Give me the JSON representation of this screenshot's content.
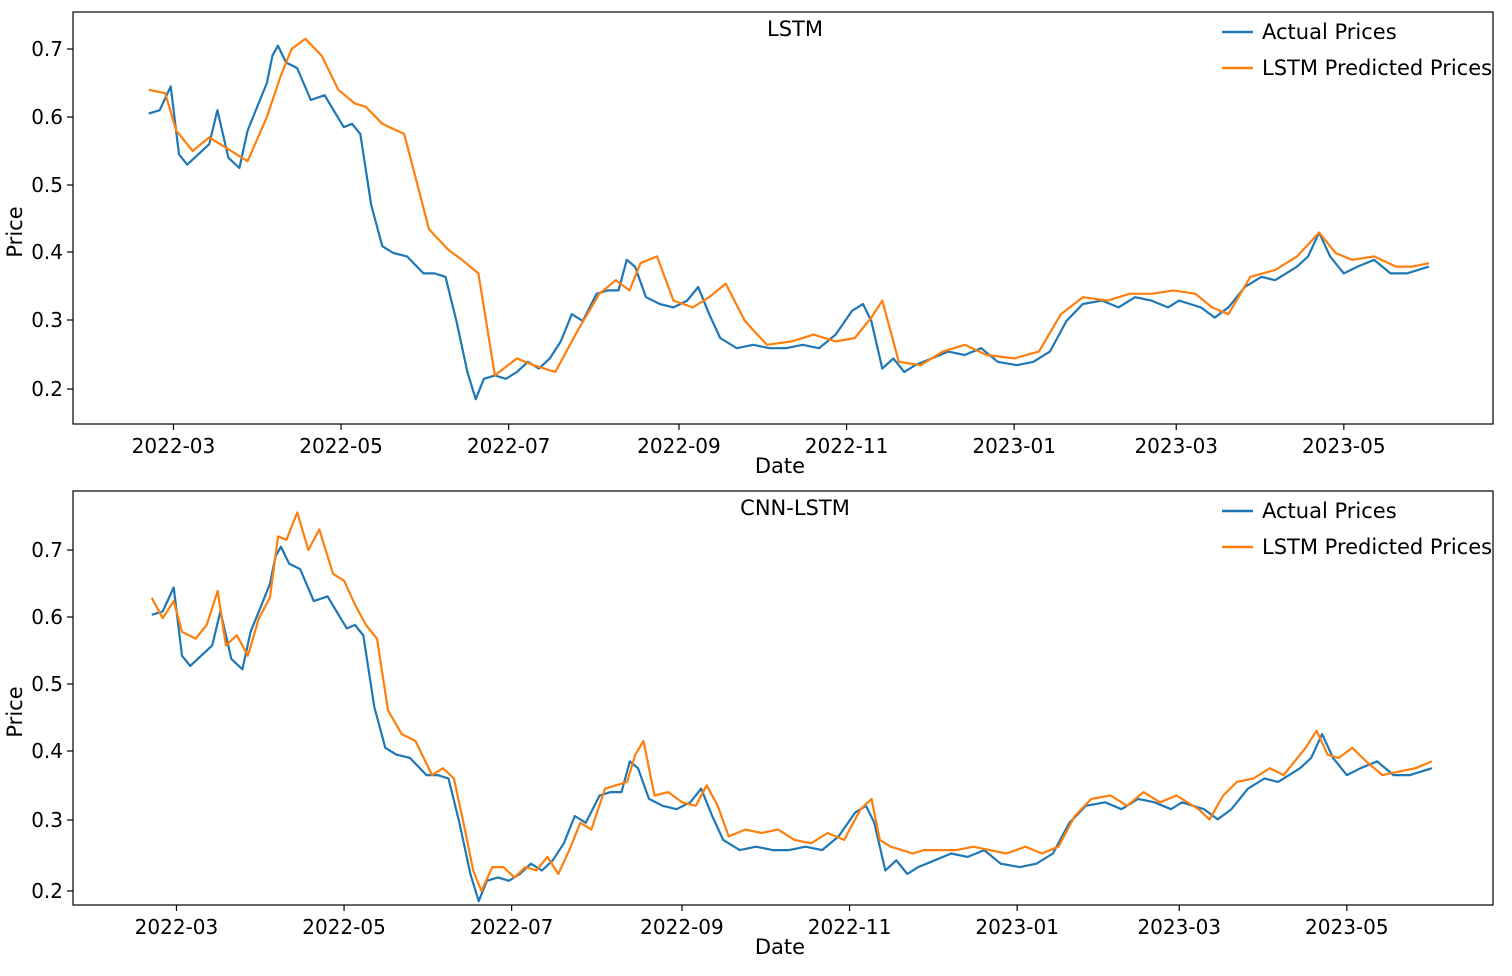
{
  "colors": {
    "actual": "#1f77b4",
    "predicted": "#ff7f0e",
    "axis": "#000000",
    "background": "#ffffff"
  },
  "chart_data": [
    {
      "type": "line",
      "title": "LSTM",
      "xlabel": "Date",
      "ylabel": "Price",
      "x_range": [
        "2022-02-15",
        "2023-06-01"
      ],
      "ylim": [
        0.16,
        0.74
      ],
      "x_ticks": [
        "2022-03",
        "2022-05",
        "2022-07",
        "2022-09",
        "2022-11",
        "2023-01",
        "2023-03",
        "2023-05"
      ],
      "y_ticks": [
        "0.2",
        "0.3",
        "0.4",
        "0.5",
        "0.6",
        "0.7"
      ],
      "legend_position": "top-right",
      "grid": false,
      "series": [
        {
          "name": "Actual Prices",
          "color": "#1f77b4",
          "x": [
            "2022-02-20",
            "2022-02-24",
            "2022-02-28",
            "2022-03-03",
            "2022-03-06",
            "2022-03-10",
            "2022-03-14",
            "2022-03-17",
            "2022-03-21",
            "2022-03-25",
            "2022-03-28",
            "2022-04-01",
            "2022-04-04",
            "2022-04-06",
            "2022-04-08",
            "2022-04-11",
            "2022-04-15",
            "2022-04-20",
            "2022-04-25",
            "2022-04-29",
            "2022-05-02",
            "2022-05-05",
            "2022-05-08",
            "2022-05-12",
            "2022-05-16",
            "2022-05-20",
            "2022-05-25",
            "2022-05-31",
            "2022-06-04",
            "2022-06-08",
            "2022-06-12",
            "2022-06-16",
            "2022-06-19",
            "2022-06-22",
            "2022-06-26",
            "2022-06-30",
            "2022-07-04",
            "2022-07-08",
            "2022-07-12",
            "2022-07-16",
            "2022-07-20",
            "2022-07-24",
            "2022-07-28",
            "2022-08-02",
            "2022-08-06",
            "2022-08-10",
            "2022-08-13",
            "2022-08-16",
            "2022-08-20",
            "2022-08-25",
            "2022-08-30",
            "2022-09-04",
            "2022-09-08",
            "2022-09-12",
            "2022-09-16",
            "2022-09-22",
            "2022-09-28",
            "2022-10-04",
            "2022-10-10",
            "2022-10-16",
            "2022-10-22",
            "2022-10-28",
            "2022-11-03",
            "2022-11-07",
            "2022-11-10",
            "2022-11-14",
            "2022-11-18",
            "2022-11-22",
            "2022-11-26",
            "2022-12-02",
            "2022-12-08",
            "2022-12-14",
            "2022-12-20",
            "2022-12-26",
            "2023-01-02",
            "2023-01-08",
            "2023-01-14",
            "2023-01-20",
            "2023-01-26",
            "2023-02-02",
            "2023-02-08",
            "2023-02-14",
            "2023-02-20",
            "2023-02-26",
            "2023-03-02",
            "2023-03-06",
            "2023-03-10",
            "2023-03-15",
            "2023-03-20",
            "2023-03-26",
            "2023-04-01",
            "2023-04-06",
            "2023-04-10",
            "2023-04-14",
            "2023-04-18",
            "2023-04-22",
            "2023-04-26",
            "2023-05-01",
            "2023-05-06",
            "2023-05-12",
            "2023-05-18",
            "2023-05-24",
            "2023-06-01"
          ],
          "y": [
            0.605,
            0.61,
            0.645,
            0.545,
            0.53,
            0.545,
            0.56,
            0.61,
            0.54,
            0.525,
            0.58,
            0.62,
            0.65,
            0.69,
            0.705,
            0.68,
            0.672,
            0.625,
            0.632,
            0.605,
            0.585,
            0.59,
            0.575,
            0.47,
            0.41,
            0.4,
            0.395,
            0.37,
            0.37,
            0.365,
            0.3,
            0.225,
            0.185,
            0.215,
            0.22,
            0.215,
            0.225,
            0.24,
            0.23,
            0.245,
            0.27,
            0.31,
            0.3,
            0.34,
            0.345,
            0.345,
            0.39,
            0.38,
            0.335,
            0.325,
            0.32,
            0.33,
            0.35,
            0.31,
            0.275,
            0.26,
            0.265,
            0.26,
            0.26,
            0.265,
            0.26,
            0.28,
            0.315,
            0.325,
            0.3,
            0.23,
            0.245,
            0.225,
            0.235,
            0.245,
            0.255,
            0.25,
            0.26,
            0.24,
            0.235,
            0.24,
            0.255,
            0.3,
            0.325,
            0.33,
            0.32,
            0.335,
            0.33,
            0.32,
            0.33,
            0.325,
            0.32,
            0.305,
            0.32,
            0.35,
            0.365,
            0.36,
            0.37,
            0.38,
            0.395,
            0.43,
            0.395,
            0.37,
            0.38,
            0.39,
            0.37,
            0.37,
            0.38
          ]
        },
        {
          "name": "LSTM Predicted Prices",
          "color": "#ff7f0e",
          "x": [
            "2022-02-20",
            "2022-02-26",
            "2022-03-02",
            "2022-03-08",
            "2022-03-14",
            "2022-03-20",
            "2022-03-28",
            "2022-04-04",
            "2022-04-09",
            "2022-04-13",
            "2022-04-18",
            "2022-04-24",
            "2022-04-30",
            "2022-05-06",
            "2022-05-10",
            "2022-05-16",
            "2022-05-24",
            "2022-06-02",
            "2022-06-09",
            "2022-06-14",
            "2022-06-20",
            "2022-06-26",
            "2022-07-04",
            "2022-07-10",
            "2022-07-18",
            "2022-07-26",
            "2022-08-03",
            "2022-08-09",
            "2022-08-14",
            "2022-08-18",
            "2022-08-24",
            "2022-08-30",
            "2022-09-06",
            "2022-09-12",
            "2022-09-18",
            "2022-09-25",
            "2022-10-03",
            "2022-10-12",
            "2022-10-20",
            "2022-10-28",
            "2022-11-04",
            "2022-11-10",
            "2022-11-14",
            "2022-11-20",
            "2022-11-28",
            "2022-12-06",
            "2022-12-14",
            "2022-12-22",
            "2023-01-01",
            "2023-01-10",
            "2023-01-18",
            "2023-01-26",
            "2023-02-04",
            "2023-02-12",
            "2023-02-20",
            "2023-02-28",
            "2023-03-08",
            "2023-03-14",
            "2023-03-20",
            "2023-03-28",
            "2023-04-06",
            "2023-04-14",
            "2023-04-22",
            "2023-04-28",
            "2023-05-04",
            "2023-05-12",
            "2023-05-20",
            "2023-05-26",
            "2023-06-01"
          ],
          "y": [
            0.64,
            0.635,
            0.58,
            0.55,
            0.57,
            0.555,
            0.535,
            0.6,
            0.66,
            0.7,
            0.715,
            0.69,
            0.64,
            0.62,
            0.615,
            0.59,
            0.575,
            0.435,
            0.405,
            0.39,
            0.37,
            0.22,
            0.245,
            0.235,
            0.225,
            0.285,
            0.34,
            0.36,
            0.345,
            0.385,
            0.395,
            0.33,
            0.32,
            0.335,
            0.355,
            0.3,
            0.265,
            0.27,
            0.28,
            0.27,
            0.275,
            0.305,
            0.33,
            0.24,
            0.235,
            0.255,
            0.265,
            0.25,
            0.245,
            0.255,
            0.31,
            0.335,
            0.33,
            0.34,
            0.34,
            0.345,
            0.34,
            0.32,
            0.31,
            0.365,
            0.375,
            0.395,
            0.43,
            0.4,
            0.39,
            0.395,
            0.38,
            0.38,
            0.385
          ]
        }
      ]
    },
    {
      "type": "line",
      "title": "CNN-LSTM",
      "xlabel": "Date",
      "ylabel": "Price",
      "x_range": [
        "2022-02-15",
        "2023-06-01"
      ],
      "ylim": [
        0.18,
        0.77
      ],
      "x_ticks": [
        "2022-03",
        "2022-05",
        "2022-07",
        "2022-09",
        "2022-11",
        "2023-01",
        "2023-03",
        "2023-05"
      ],
      "y_ticks": [
        "0.2",
        "0.3",
        "0.4",
        "0.5",
        "0.6",
        "0.7"
      ],
      "legend_position": "top-right",
      "grid": false,
      "series": [
        {
          "name": "Actual Prices",
          "color": "#1f77b4",
          "x": [
            "2022-02-20",
            "2022-02-24",
            "2022-02-28",
            "2022-03-03",
            "2022-03-06",
            "2022-03-10",
            "2022-03-14",
            "2022-03-17",
            "2022-03-21",
            "2022-03-25",
            "2022-03-28",
            "2022-04-01",
            "2022-04-04",
            "2022-04-06",
            "2022-04-08",
            "2022-04-11",
            "2022-04-15",
            "2022-04-20",
            "2022-04-25",
            "2022-04-29",
            "2022-05-02",
            "2022-05-05",
            "2022-05-08",
            "2022-05-12",
            "2022-05-16",
            "2022-05-20",
            "2022-05-25",
            "2022-05-31",
            "2022-06-04",
            "2022-06-08",
            "2022-06-12",
            "2022-06-16",
            "2022-06-19",
            "2022-06-22",
            "2022-06-26",
            "2022-06-30",
            "2022-07-04",
            "2022-07-08",
            "2022-07-12",
            "2022-07-16",
            "2022-07-20",
            "2022-07-24",
            "2022-07-28",
            "2022-08-02",
            "2022-08-06",
            "2022-08-10",
            "2022-08-13",
            "2022-08-16",
            "2022-08-20",
            "2022-08-25",
            "2022-08-30",
            "2022-09-04",
            "2022-09-08",
            "2022-09-12",
            "2022-09-16",
            "2022-09-22",
            "2022-09-28",
            "2022-10-04",
            "2022-10-10",
            "2022-10-16",
            "2022-10-22",
            "2022-10-28",
            "2022-11-03",
            "2022-11-07",
            "2022-11-10",
            "2022-11-14",
            "2022-11-18",
            "2022-11-22",
            "2022-11-26",
            "2022-12-02",
            "2022-12-08",
            "2022-12-14",
            "2022-12-20",
            "2022-12-26",
            "2023-01-02",
            "2023-01-08",
            "2023-01-14",
            "2023-01-20",
            "2023-01-26",
            "2023-02-02",
            "2023-02-08",
            "2023-02-14",
            "2023-02-20",
            "2023-02-26",
            "2023-03-02",
            "2023-03-06",
            "2023-03-10",
            "2023-03-15",
            "2023-03-20",
            "2023-03-26",
            "2023-04-01",
            "2023-04-06",
            "2023-04-10",
            "2023-04-14",
            "2023-04-18",
            "2023-04-22",
            "2023-04-26",
            "2023-05-01",
            "2023-05-06",
            "2023-05-12",
            "2023-05-18",
            "2023-05-24",
            "2023-06-01"
          ],
          "y": [
            0.605,
            0.61,
            0.645,
            0.545,
            0.53,
            0.545,
            0.56,
            0.61,
            0.54,
            0.525,
            0.58,
            0.62,
            0.65,
            0.69,
            0.705,
            0.68,
            0.672,
            0.625,
            0.632,
            0.605,
            0.585,
            0.59,
            0.575,
            0.47,
            0.41,
            0.4,
            0.395,
            0.37,
            0.37,
            0.365,
            0.3,
            0.225,
            0.185,
            0.215,
            0.22,
            0.215,
            0.225,
            0.24,
            0.23,
            0.245,
            0.27,
            0.31,
            0.3,
            0.34,
            0.345,
            0.345,
            0.39,
            0.38,
            0.335,
            0.325,
            0.32,
            0.33,
            0.35,
            0.31,
            0.275,
            0.26,
            0.265,
            0.26,
            0.26,
            0.265,
            0.26,
            0.28,
            0.315,
            0.325,
            0.3,
            0.23,
            0.245,
            0.225,
            0.235,
            0.245,
            0.255,
            0.25,
            0.26,
            0.24,
            0.235,
            0.24,
            0.255,
            0.3,
            0.325,
            0.33,
            0.32,
            0.335,
            0.33,
            0.32,
            0.33,
            0.325,
            0.32,
            0.305,
            0.32,
            0.35,
            0.365,
            0.36,
            0.37,
            0.38,
            0.395,
            0.43,
            0.395,
            0.37,
            0.38,
            0.39,
            0.37,
            0.37,
            0.38
          ]
        },
        {
          "name": "LSTM Predicted Prices",
          "color": "#ff7f0e",
          "x": [
            "2022-02-20",
            "2022-02-24",
            "2022-02-28",
            "2022-03-03",
            "2022-03-08",
            "2022-03-12",
            "2022-03-16",
            "2022-03-19",
            "2022-03-23",
            "2022-03-27",
            "2022-03-31",
            "2022-04-04",
            "2022-04-07",
            "2022-04-10",
            "2022-04-14",
            "2022-04-18",
            "2022-04-22",
            "2022-04-27",
            "2022-05-01",
            "2022-05-05",
            "2022-05-09",
            "2022-05-13",
            "2022-05-17",
            "2022-05-22",
            "2022-05-27",
            "2022-06-02",
            "2022-06-06",
            "2022-06-10",
            "2022-06-14",
            "2022-06-17",
            "2022-06-20",
            "2022-06-24",
            "2022-06-28",
            "2022-07-02",
            "2022-07-06",
            "2022-07-10",
            "2022-07-14",
            "2022-07-18",
            "2022-07-22",
            "2022-07-26",
            "2022-07-30",
            "2022-08-04",
            "2022-08-08",
            "2022-08-12",
            "2022-08-15",
            "2022-08-18",
            "2022-08-22",
            "2022-08-27",
            "2022-09-01",
            "2022-09-06",
            "2022-09-10",
            "2022-09-14",
            "2022-09-18",
            "2022-09-24",
            "2022-09-30",
            "2022-10-06",
            "2022-10-12",
            "2022-10-18",
            "2022-10-24",
            "2022-10-30",
            "2022-11-05",
            "2022-11-09",
            "2022-11-12",
            "2022-11-16",
            "2022-11-20",
            "2022-11-24",
            "2022-11-28",
            "2022-12-04",
            "2022-12-10",
            "2022-12-16",
            "2022-12-22",
            "2022-12-28",
            "2023-01-04",
            "2023-01-10",
            "2023-01-16",
            "2023-01-22",
            "2023-01-28",
            "2023-02-04",
            "2023-02-10",
            "2023-02-16",
            "2023-02-22",
            "2023-02-28",
            "2023-03-04",
            "2023-03-08",
            "2023-03-12",
            "2023-03-17",
            "2023-03-22",
            "2023-03-28",
            "2023-04-03",
            "2023-04-08",
            "2023-04-12",
            "2023-04-16",
            "2023-04-20",
            "2023-04-24",
            "2023-04-28",
            "2023-05-03",
            "2023-05-08",
            "2023-05-14",
            "2023-05-20",
            "2023-05-26",
            "2023-06-01"
          ],
          "y": [
            0.63,
            0.6,
            0.625,
            0.58,
            0.57,
            0.59,
            0.64,
            0.56,
            0.575,
            0.545,
            0.6,
            0.63,
            0.72,
            0.715,
            0.755,
            0.7,
            0.73,
            0.665,
            0.655,
            0.62,
            0.59,
            0.57,
            0.465,
            0.43,
            0.42,
            0.37,
            0.38,
            0.365,
            0.29,
            0.23,
            0.2,
            0.235,
            0.235,
            0.22,
            0.235,
            0.23,
            0.25,
            0.225,
            0.26,
            0.3,
            0.29,
            0.35,
            0.355,
            0.36,
            0.4,
            0.42,
            0.34,
            0.345,
            0.33,
            0.325,
            0.355,
            0.325,
            0.28,
            0.29,
            0.285,
            0.29,
            0.275,
            0.27,
            0.285,
            0.275,
            0.32,
            0.335,
            0.275,
            0.265,
            0.26,
            0.255,
            0.26,
            0.26,
            0.26,
            0.265,
            0.26,
            0.255,
            0.265,
            0.255,
            0.265,
            0.31,
            0.335,
            0.34,
            0.325,
            0.345,
            0.33,
            0.34,
            0.33,
            0.32,
            0.305,
            0.34,
            0.36,
            0.365,
            0.38,
            0.37,
            0.39,
            0.41,
            0.435,
            0.4,
            0.395,
            0.41,
            0.39,
            0.37,
            0.375,
            0.38,
            0.39
          ]
        }
      ]
    }
  ]
}
